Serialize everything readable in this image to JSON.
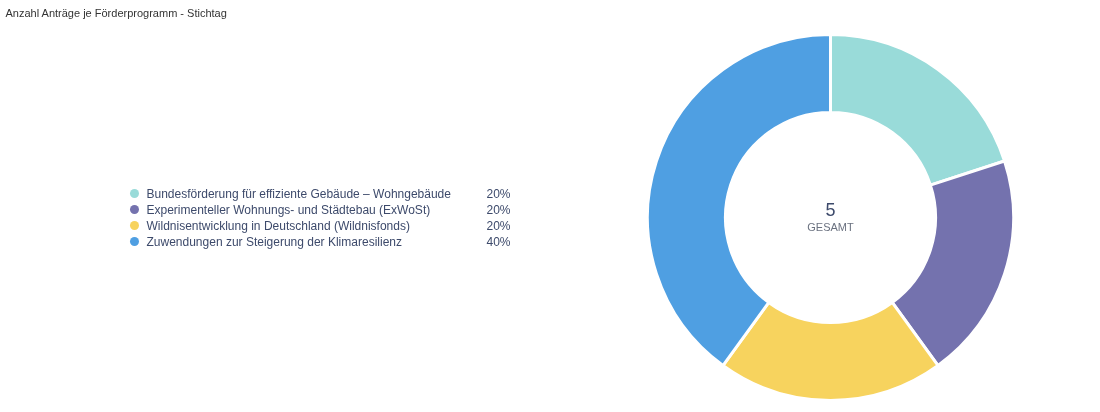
{
  "chart_data": {
    "type": "donut",
    "title": "Anzahl Anträge je Förderprogramm - Stichtag",
    "categories": [
      "Bundesförderung für effiziente Gebäude – Wohngebäude",
      "Experimenteller Wohnungs- und Städtebau (ExWoSt)",
      "Wildnisentwicklung in Deutschland (Wildnisfonds)",
      "Zuwendungen zur Steigerung der Klimaresilienz"
    ],
    "values": [
      20,
      20,
      20,
      40
    ],
    "colors": [
      "#99dbd9",
      "#7472ae",
      "#f7d35e",
      "#4f9fe2"
    ],
    "value_labels": [
      "20%",
      "20%",
      "20%",
      "40%"
    ],
    "legend": "left",
    "annotations": [
      "5",
      "GESAMT"
    ]
  }
}
